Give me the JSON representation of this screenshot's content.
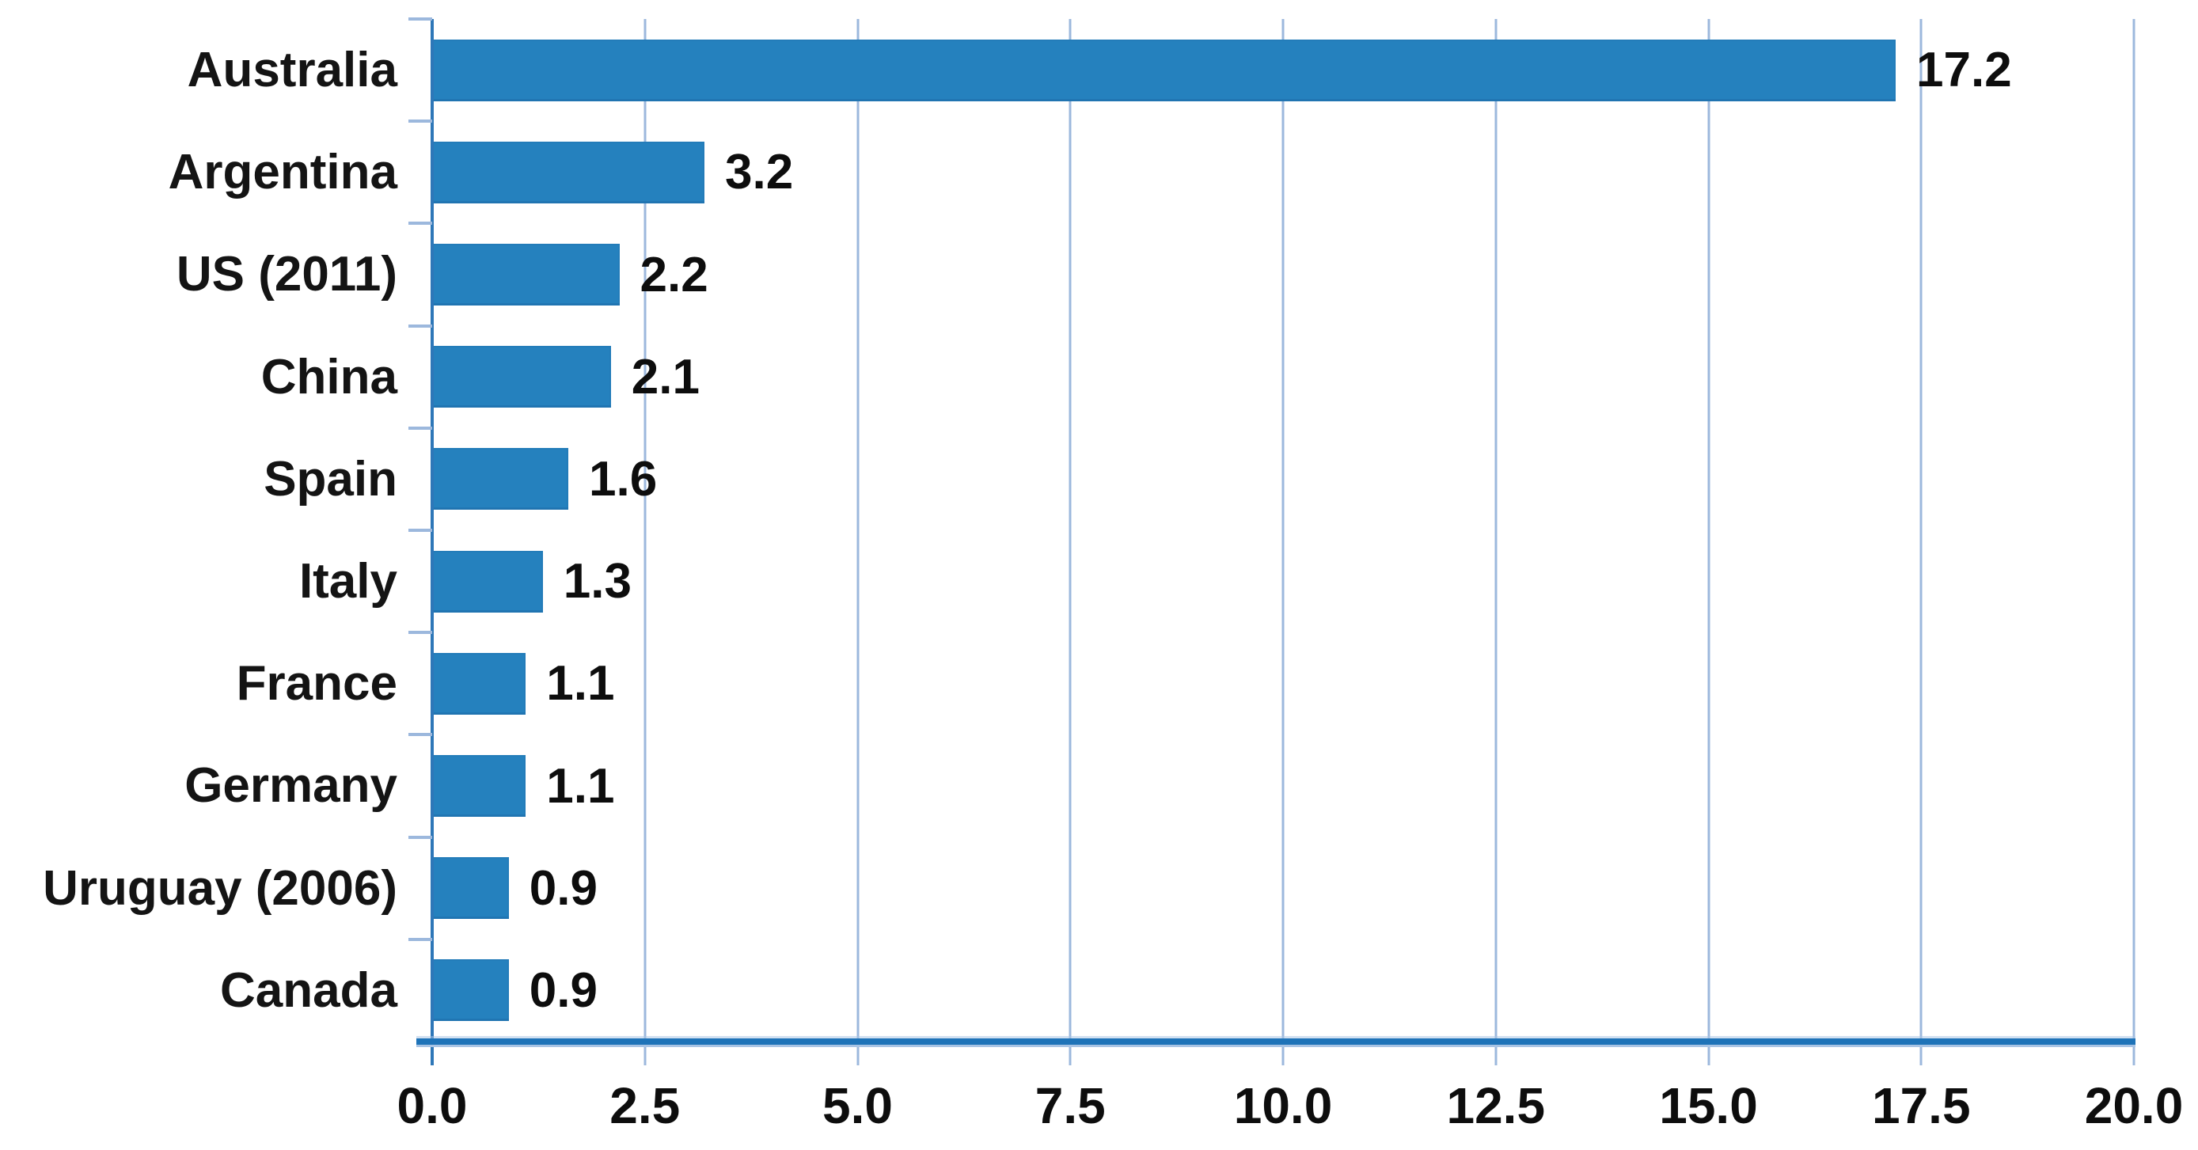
{
  "chart_data": {
    "type": "bar",
    "orientation": "horizontal",
    "title": "",
    "xlabel": "",
    "ylabel": "",
    "categories": [
      "Australia",
      "Argentina",
      "US (2011)",
      "China",
      "Spain",
      "Italy",
      "France",
      "Germany",
      "Uruguay (2006)",
      "Canada"
    ],
    "values": [
      17.2,
      3.2,
      2.2,
      2.1,
      1.6,
      1.3,
      1.1,
      1.1,
      0.9,
      0.9
    ],
    "value_labels": [
      "17.2",
      "3.2",
      "2.2",
      "2.1",
      "1.6",
      "1.3",
      "1.1",
      "1.1",
      "0.9",
      "0.9"
    ],
    "x_ticks": [
      "0.0",
      "2.5",
      "5.0",
      "7.5",
      "10.0",
      "12.5",
      "15.0",
      "17.5",
      "20.0"
    ],
    "x_tick_values": [
      0,
      2.5,
      5,
      7.5,
      10,
      12.5,
      15,
      17.5,
      20
    ],
    "xlim": [
      0,
      20
    ],
    "grid": true,
    "legend": false,
    "colors": {
      "bar_fill": "#2581be",
      "bar_edge": "#1c6aa6",
      "gridline": "#9cb8dd",
      "spine": "#2e77b8",
      "axis_line": "#1e73b8",
      "axis_halo": "#a9c4e4",
      "tick_mark": "#9cb8dd",
      "label_text": "#141414",
      "tick_text": "#0d0d0d"
    }
  }
}
